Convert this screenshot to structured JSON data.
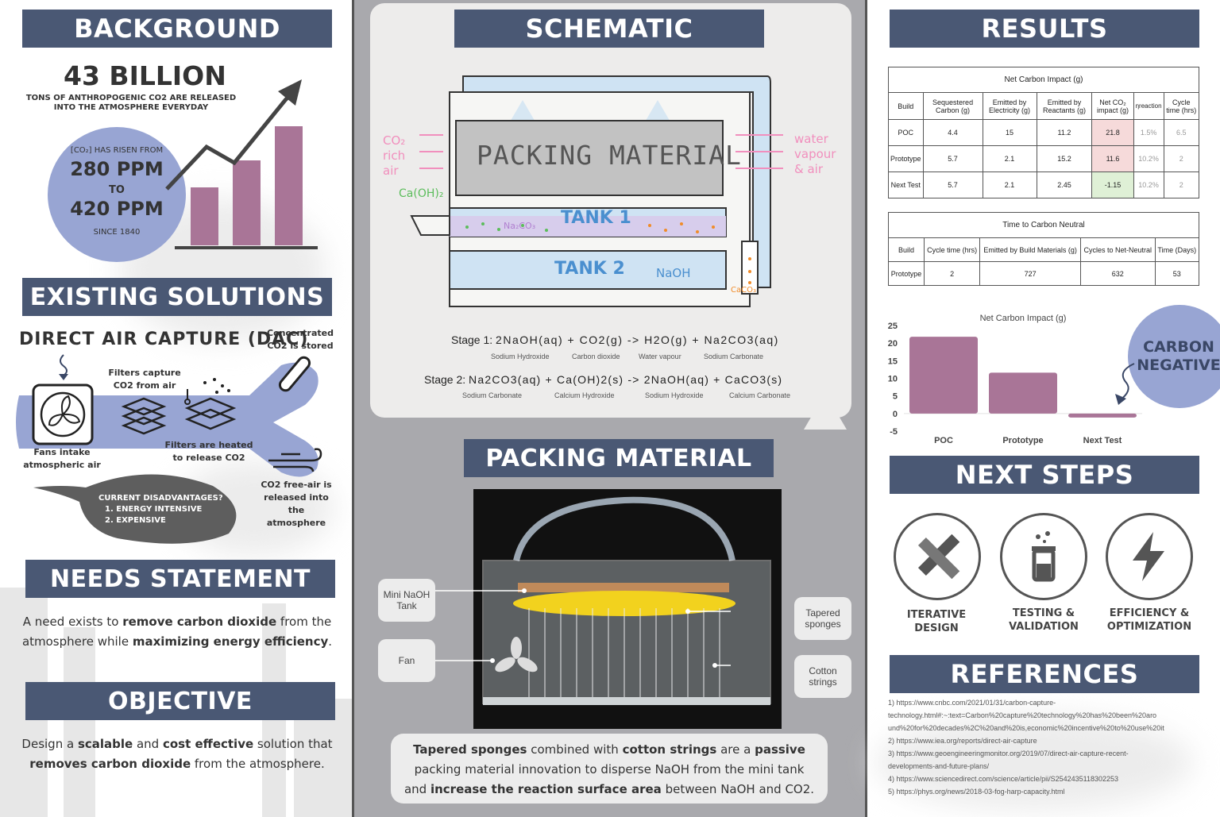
{
  "background": {
    "title": "BACKGROUND",
    "stat_big": "43 BILLION",
    "stat_sub1": "TONS OF ANTHROPOGENIC CO2 ARE RELEASED",
    "stat_sub2": "INTO THE ATMOSPHERE EVERYDAY",
    "circle_line1": "[CO₂] HAS RISEN FROM",
    "circle_ppm1": "280 PPM",
    "circle_to": "TO",
    "circle_ppm2": "420 PPM",
    "circle_since": "SINCE 1840"
  },
  "existing": {
    "title": "EXISTING SOLUTIONS",
    "dac_title": "DIRECT AIR CAPTURE (DAC)",
    "fans_label1": "Fans intake",
    "fans_label2": "atmospheric air",
    "filters_label1": "Filters capture",
    "filters_label2": "CO2 from air",
    "heated_label1": "Filters are heated",
    "heated_label2": "to release CO2",
    "stored_label1": "Concentrated",
    "stored_label2": "CO2 is stored",
    "free_label1": "CO2 free-air is",
    "free_label2": "released into the",
    "free_label3": "atmosphere",
    "disadv_title": "CURRENT DISADVANTAGES?",
    "disadv_1": "1. ENERGY INTENSIVE",
    "disadv_2": "2. EXPENSIVE"
  },
  "needs": {
    "title": "NEEDS STATEMENT",
    "p1": "A need exists to ",
    "b1": "remove carbon dioxide",
    "p2": " from the",
    "p3": "atmosphere while ",
    "b2": "maximizing energy efficiency",
    "p4": "."
  },
  "objective": {
    "title": "OBJECTIVE",
    "p1": "Design a ",
    "b1": "scalable",
    "p2": " and ",
    "b2": "cost effective",
    "p3": " solution that",
    "b3": "removes carbon dioxide",
    "p4": " from the atmosphere."
  },
  "schematic": {
    "title": "SCHEMATIC",
    "packing_label": "PACKING MATERIAL",
    "tank1": "TANK 1",
    "tank2": "TANK 2",
    "naoh": "NaOH",
    "na2co3": "Na₂CO₃",
    "caoh2": "Ca(OH)₂",
    "caco3": "CaCO₃",
    "in_1": "CO₂",
    "in_2": "rich",
    "in_3": "air",
    "out_1": "water",
    "out_2": "vapour",
    "out_3": "& air",
    "stage1_label": "Stage 1:",
    "stage1_eq": "2NaOH(aq) + CO2(g) -> H2O(g) + Na2CO3(aq)",
    "stage1_names": [
      "Sodium Hydroxide",
      "Carbon dioxide",
      "Water vapour",
      "Sodium Carbonate"
    ],
    "stage2_label": "Stage 2:",
    "stage2_eq": "Na2CO3(aq) + Ca(OH)2(s) -> 2NaOH(aq) + CaCO3(s)",
    "stage2_names": [
      "Sodium Carbonate",
      "Calcium Hydroxide",
      "Sodium Hydroxide",
      "Calcium Carbonate"
    ]
  },
  "packing": {
    "title": "PACKING MATERIAL",
    "callout_mini1": "Mini NaOH",
    "callout_mini2": "Tank",
    "callout_fan": "Fan",
    "callout_sponges1": "Tapered",
    "callout_sponges2": "sponges",
    "callout_strings1": "Cotton",
    "callout_strings2": "strings",
    "desc_b1": "Tapered sponges",
    "desc_1": " combined with ",
    "desc_b2": "cotton strings",
    "desc_2": " are a ",
    "desc_b3": "passive",
    "desc_3": "packing material innovation to disperse NaOH from the mini tank",
    "desc_4": "and ",
    "desc_b4": "increase the reaction surface area",
    "desc_5": " between NaOH and CO2."
  },
  "results": {
    "title": "RESULTS",
    "table1_title": "Net Carbon Impact (g)",
    "table1_headers": [
      "Build",
      "Sequestered Carbon (g)",
      "Emitted by Electricity (g)",
      "Emitted by Reactants (g)",
      "Net CO₂ impact (g)",
      "ηreaction",
      "Cycle time (hrs)"
    ],
    "table1_rows": [
      [
        "POC",
        "4.4",
        "15",
        "11.2",
        "21.8",
        "1.5%",
        "6.5"
      ],
      [
        "Prototype",
        "5.7",
        "2.1",
        "15.2",
        "11.6",
        "10.2%",
        "2"
      ],
      [
        "Next Test",
        "5.7",
        "2.1",
        "2.45",
        "-1.15",
        "10.2%",
        "2"
      ]
    ],
    "table2_title": "Time to Carbon Neutral",
    "table2_headers": [
      "Build",
      "Cycle time (hrs)",
      "Emitted by Build Materials (g)",
      "Cycles to Net-Neutral",
      "Time (Days)"
    ],
    "table2_rows": [
      [
        "Prototype",
        "2",
        "727",
        "632",
        "53"
      ]
    ],
    "carbon_negative1": "CARBON",
    "carbon_negative2": "NEGATIVE",
    "colors": {
      "bar": "#a97597",
      "positive_cell": "#f6dada",
      "negative_cell": "#dff0d6",
      "banner": "#4a5874",
      "circle": "#98a5d3"
    }
  },
  "chart_data": {
    "type": "bar",
    "title": "Net Carbon Impact (g)",
    "categories": [
      "POC",
      "Prototype",
      "Next Test"
    ],
    "values": [
      21.8,
      11.6,
      -1.15
    ],
    "yticks": [
      25,
      20,
      15,
      10,
      5,
      0,
      -5
    ],
    "ylim": [
      -5,
      25
    ],
    "xlabel": "",
    "ylabel": "",
    "grid": false
  },
  "next_steps": {
    "title": "NEXT STEPS",
    "step1_a": "ITERATIVE",
    "step1_b": "DESIGN",
    "step2_a": "TESTING &",
    "step2_b": "VALIDATION",
    "step3_a": "EFFICIENCY &",
    "step3_b": "OPTIMIZATION",
    "icons": [
      "pencil-ruler-icon",
      "beaker-icon",
      "lightning-icon"
    ]
  },
  "references": {
    "title": "REFERENCES",
    "lines": [
      "1) https://www.cnbc.com/2021/01/31/carbon-capture-",
      "technology.html#:~:text=Carbon%20capture%20technology%20has%20been%20aro",
      "und%20for%20decades%2C%20and%20is,economic%20incentive%20to%20use%20it",
      "2) https://www.iea.org/reports/direct-air-capture",
      "3) https://www.geoengineeringmonitor.org/2019/07/direct-air-capture-recent-",
      "developments-and-future-plans/",
      "4) https://www.sciencedirect.com/science/article/pii/S2542435118302253",
      "5) https://phys.org/news/2018-03-fog-harp-capacity.html"
    ]
  }
}
